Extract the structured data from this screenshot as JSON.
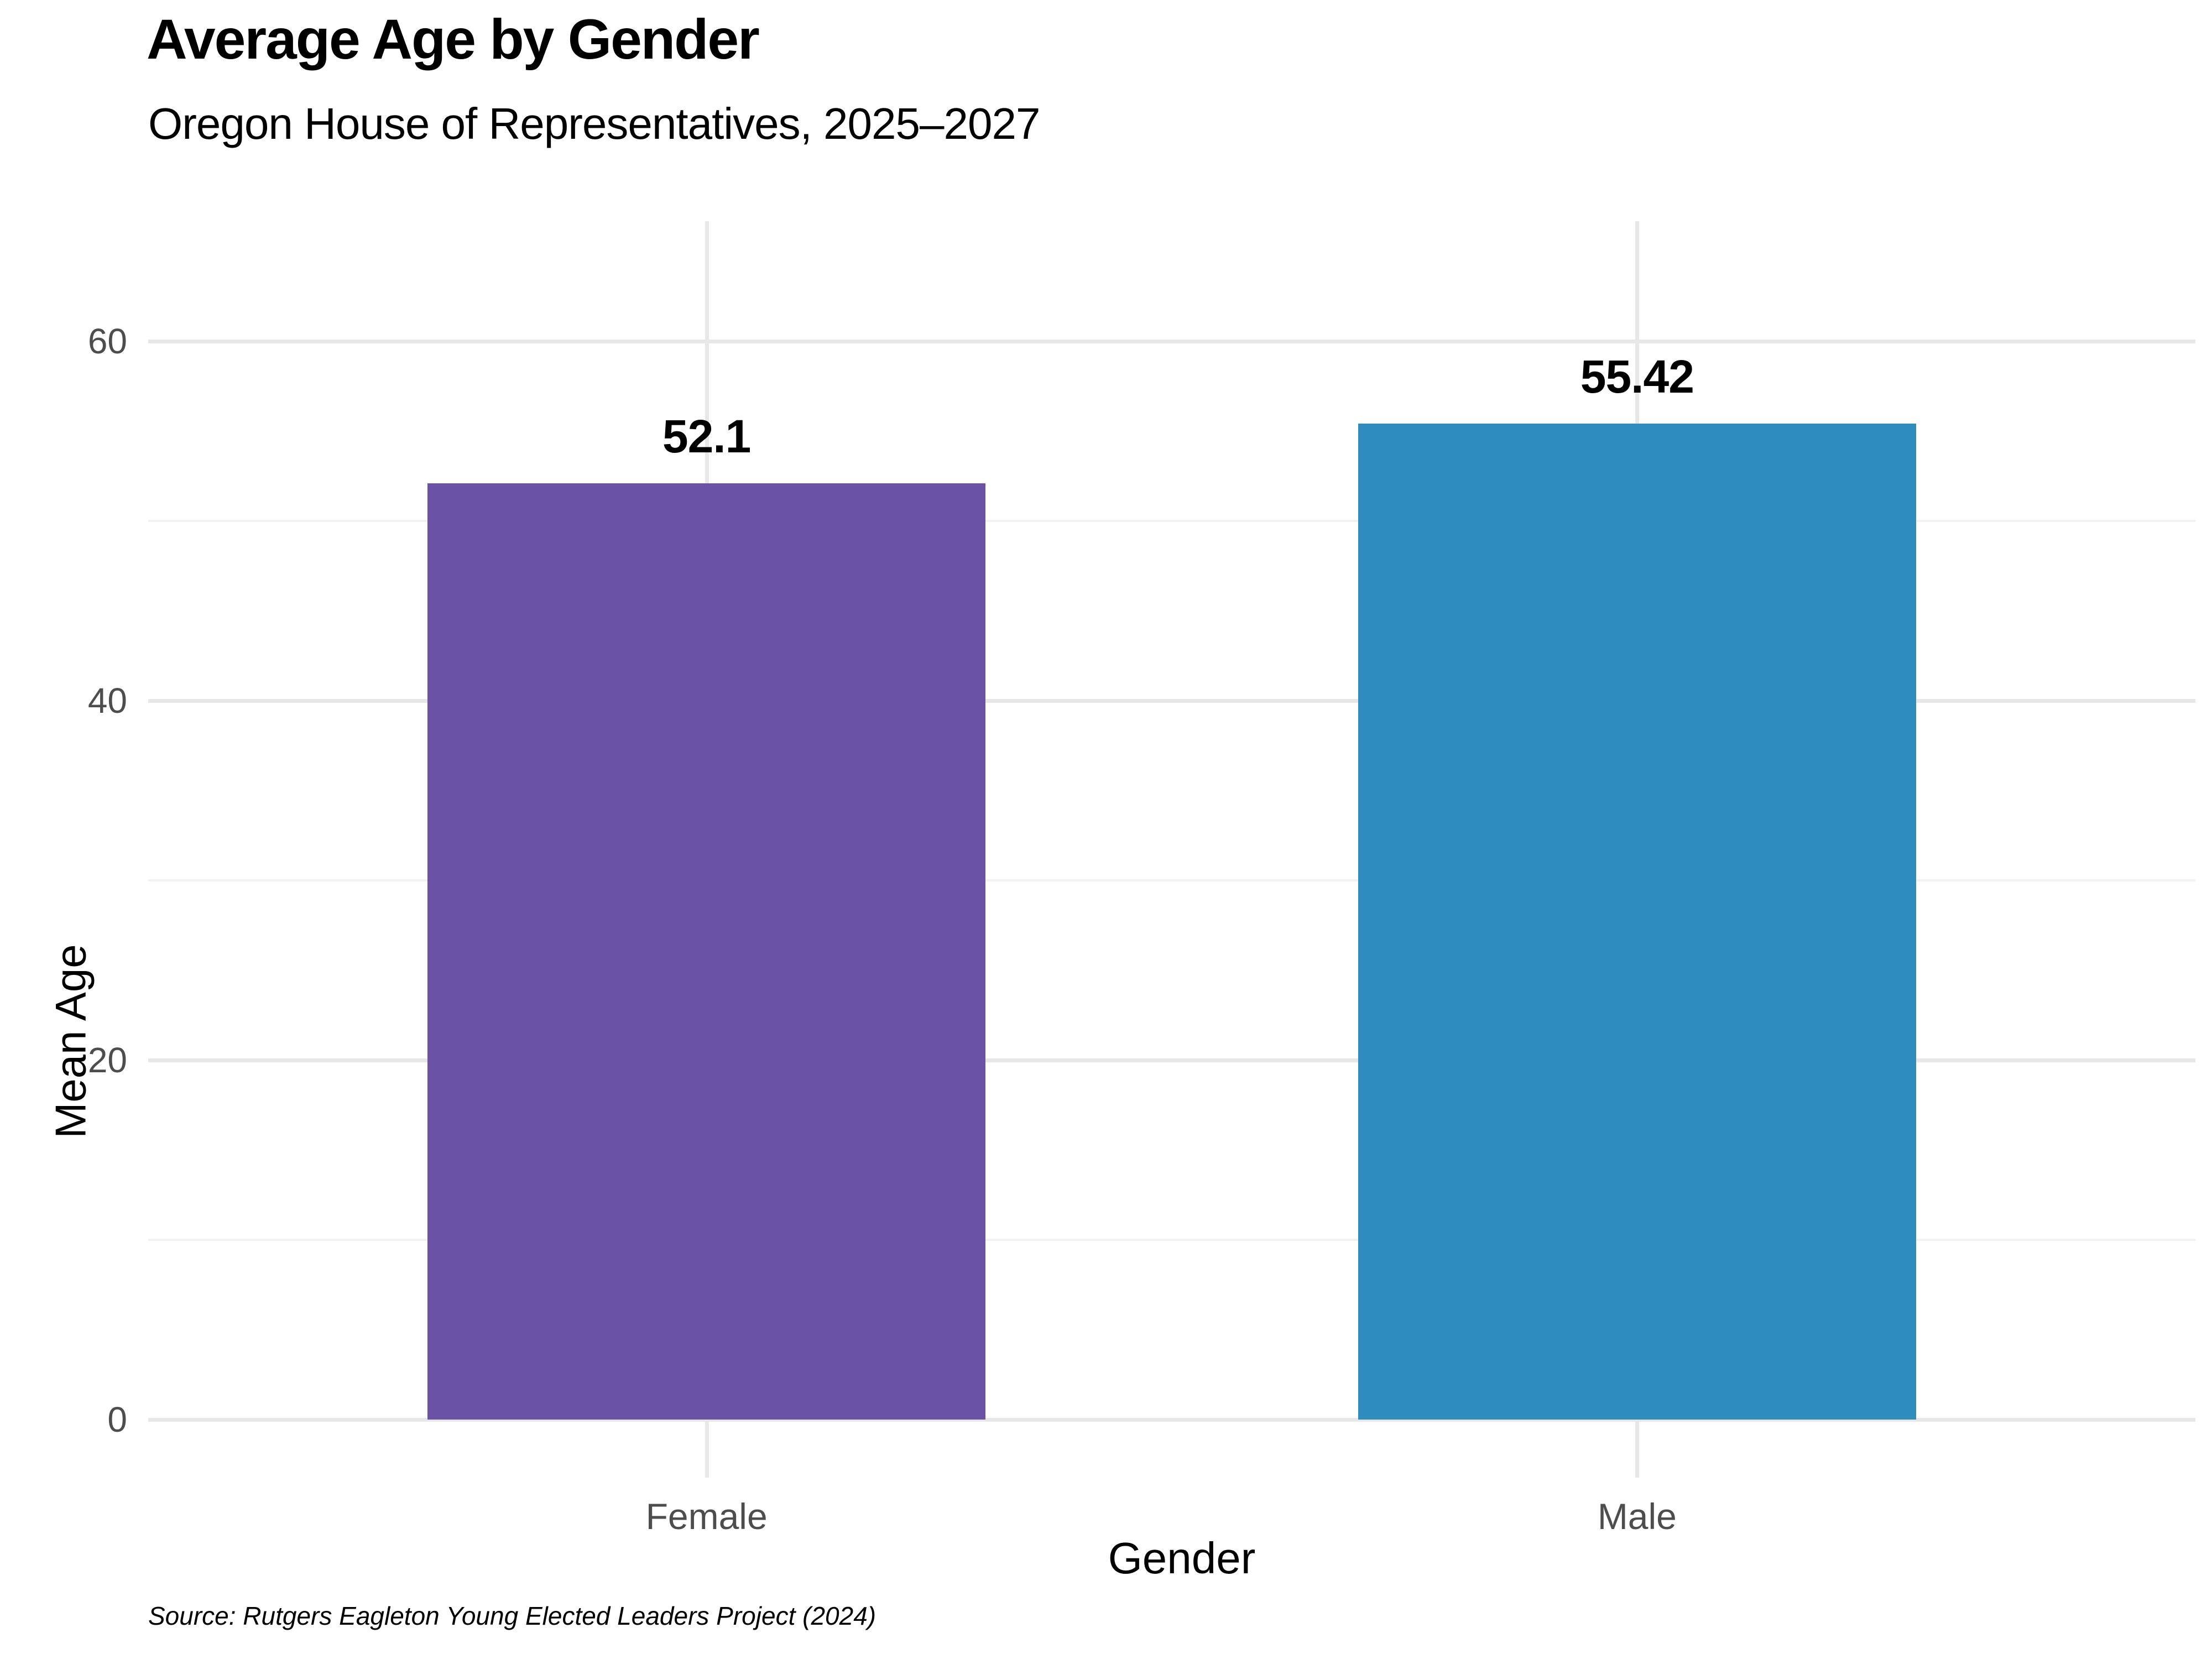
{
  "chart": {
    "title": "Average Age by Gender",
    "subtitle": "Oregon House of Representatives, 2025–2027",
    "x_axis_title": "Gender",
    "y_axis_title": "Mean Age",
    "source_note": "Source: Rutgers Eagleton Young Elected Leaders Project (2024)"
  },
  "chart_data": {
    "type": "bar",
    "title": "Average Age by Gender",
    "subtitle": "Oregon House of Representatives, 2025–2027",
    "xlabel": "Gender",
    "ylabel": "Mean Age",
    "categories": [
      "Female",
      "Male"
    ],
    "values": [
      52.1,
      55.42
    ],
    "value_labels": [
      "52.1",
      "55.42"
    ],
    "bar_colors": [
      "#6a52a5",
      "#2e8cbf"
    ],
    "ylim": [
      0,
      63
    ],
    "y_ticks": [
      0,
      20,
      40,
      60
    ],
    "y_tick_labels": [
      "0",
      "20",
      "40",
      "60"
    ],
    "y_minor_ticks": [
      10,
      30,
      50
    ],
    "grid": "horizontal major+minor, vertical at category centers",
    "legend": "none",
    "panel_background": "#ffffff",
    "grid_major_color": "#e7e7e7",
    "grid_minor_color": "#f2f2f2",
    "tick_label_color": "#4d4d4d"
  }
}
